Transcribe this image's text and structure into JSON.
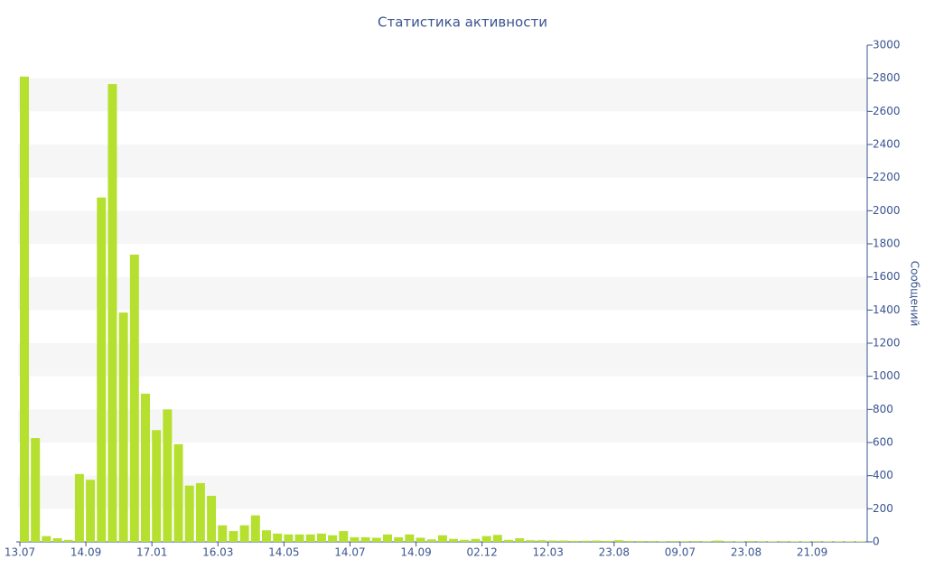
{
  "chart_data": {
    "type": "bar",
    "title": "Статистика активности",
    "y_label": "Сообщений",
    "categories": [
      "13.07",
      null,
      null,
      null,
      null,
      null,
      "14.09",
      null,
      null,
      null,
      null,
      null,
      "17.01",
      null,
      null,
      null,
      null,
      null,
      "16.03",
      null,
      null,
      null,
      null,
      null,
      "14.05",
      null,
      null,
      null,
      null,
      null,
      "14.07",
      null,
      null,
      null,
      null,
      null,
      "14.09",
      null,
      null,
      null,
      null,
      null,
      "02.12",
      null,
      null,
      null,
      null,
      null,
      "12.03",
      null,
      null,
      null,
      null,
      null,
      "23.08",
      null,
      null,
      null,
      null,
      null,
      "09.07",
      null,
      null,
      null,
      null,
      null,
      "23.08",
      null,
      null,
      null,
      null,
      null,
      "21.09",
      null,
      null,
      null,
      null
    ],
    "values": [
      2810,
      627,
      35,
      22,
      12,
      410,
      375,
      2080,
      2765,
      1385,
      1735,
      895,
      675,
      800,
      590,
      340,
      355,
      278,
      100,
      65,
      100,
      160,
      70,
      50,
      45,
      45,
      45,
      50,
      40,
      65,
      28,
      28,
      25,
      45,
      28,
      45,
      25,
      15,
      40,
      18,
      12,
      18,
      35,
      42,
      12,
      22,
      10,
      10,
      8,
      8,
      6,
      7,
      8,
      6,
      10,
      6,
      5,
      5,
      4,
      5,
      4,
      5,
      4,
      8,
      4,
      3,
      5,
      4,
      3,
      4,
      3,
      3,
      4,
      3,
      3,
      3,
      3
    ],
    "color": "#b5e02f",
    "ylim": [
      0,
      3000
    ],
    "yticks": [
      0,
      200,
      400,
      600,
      800,
      1000,
      1200,
      1400,
      1600,
      1800,
      2000,
      2200,
      2400,
      2600,
      2800,
      3000
    ],
    "grid": "bands",
    "y_axis_side": "right"
  }
}
